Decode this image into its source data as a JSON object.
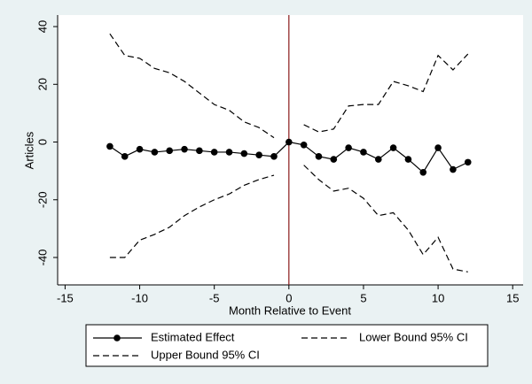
{
  "chart_data": {
    "type": "line",
    "x_label": "Month Relative to Event",
    "y_label": "Articles",
    "x": [
      -12,
      -11,
      -10,
      -9,
      -8,
      -7,
      -6,
      -5,
      -4,
      -3,
      -2,
      -1,
      0,
      1,
      2,
      3,
      4,
      5,
      6,
      7,
      8,
      9,
      10,
      11,
      12
    ],
    "series": [
      {
        "name": "Estimated Effect",
        "color": "#000000",
        "style": "solid",
        "markers": true,
        "values": [
          -1.5,
          -5,
          -2.5,
          -3.5,
          -3,
          -2.5,
          -3,
          -3.5,
          -3.5,
          -4,
          -4.5,
          -5,
          0,
          -1,
          -5,
          -6,
          -2,
          -3.5,
          -6,
          -2,
          -6,
          -10.5,
          -2,
          -9.5,
          -7
        ]
      },
      {
        "name": "Lower Bound 95% CI",
        "color": "#000000",
        "style": "dashed",
        "markers": false,
        "values": [
          -40,
          -40,
          -34,
          -32,
          -29.5,
          -25.5,
          -22.5,
          -20,
          -18,
          -15,
          -13,
          -11.5,
          null,
          -8,
          -13,
          -17,
          -16,
          -19.5,
          -25.5,
          -24.5,
          -30.5,
          -39,
          -33,
          -44,
          -45
        ]
      },
      {
        "name": "Upper Bound 95% CI",
        "color": "#000000",
        "style": "dashed",
        "markers": false,
        "values": [
          37.5,
          30,
          29,
          25.5,
          24,
          21,
          17,
          13,
          11,
          7,
          5,
          1.5,
          null,
          6,
          3.5,
          4.5,
          12.5,
          13,
          13,
          21,
          19.5,
          17.5,
          30,
          25,
          30.5
        ]
      }
    ],
    "reference_line": {
      "x": 0,
      "color": "#8b1a1a"
    },
    "xlim": [
      -15.5,
      15.7
    ],
    "xticks": [
      -15,
      -10,
      -5,
      0,
      5,
      10,
      15
    ],
    "ylim": [
      -49.5,
      44
    ],
    "yticks": [
      -40,
      -20,
      0,
      20,
      40
    ],
    "grid": false
  }
}
